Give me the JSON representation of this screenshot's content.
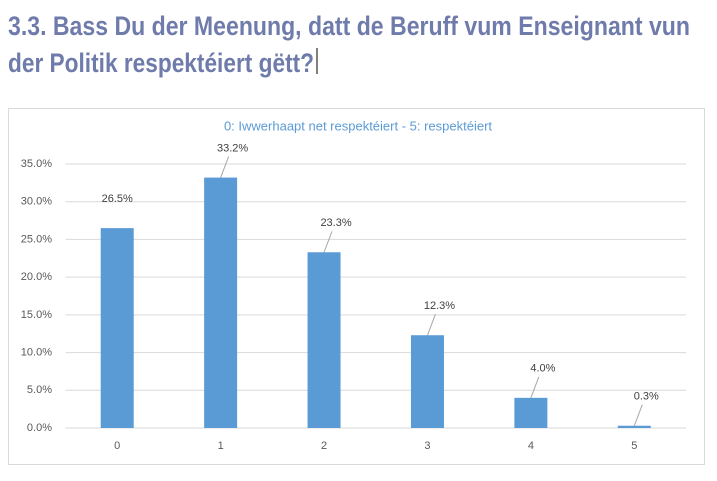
{
  "heading": [
    "3.3. Bass Du der Meenung, datt de Beruff vum Enseignant vun",
    "der Politik respektéiert gëtt?"
  ],
  "chart_data": {
    "type": "bar",
    "title": "0: Iwwerhaapt net respektéiert - 5: respektéiert",
    "categories": [
      "0",
      "1",
      "2",
      "3",
      "4",
      "5"
    ],
    "values": [
      26.5,
      33.2,
      23.3,
      12.3,
      4.0,
      0.3
    ],
    "value_labels": [
      "26.5%",
      "33.2%",
      "23.3%",
      "12.3%",
      "4.0%",
      "0.3%"
    ],
    "color": "#5b9bd5",
    "ylim": [
      0,
      35
    ],
    "yticks": [
      {
        "value": 0,
        "label": "0.0%"
      },
      {
        "value": 5,
        "label": "5.0%"
      },
      {
        "value": 10,
        "label": "10.0%"
      },
      {
        "value": 15,
        "label": "15.0%"
      },
      {
        "value": 20,
        "label": "20.0%"
      },
      {
        "value": 25,
        "label": "25.0%"
      },
      {
        "value": 30,
        "label": "30.0%"
      },
      {
        "value": 35,
        "label": "35.0%"
      }
    ],
    "grid": true
  }
}
